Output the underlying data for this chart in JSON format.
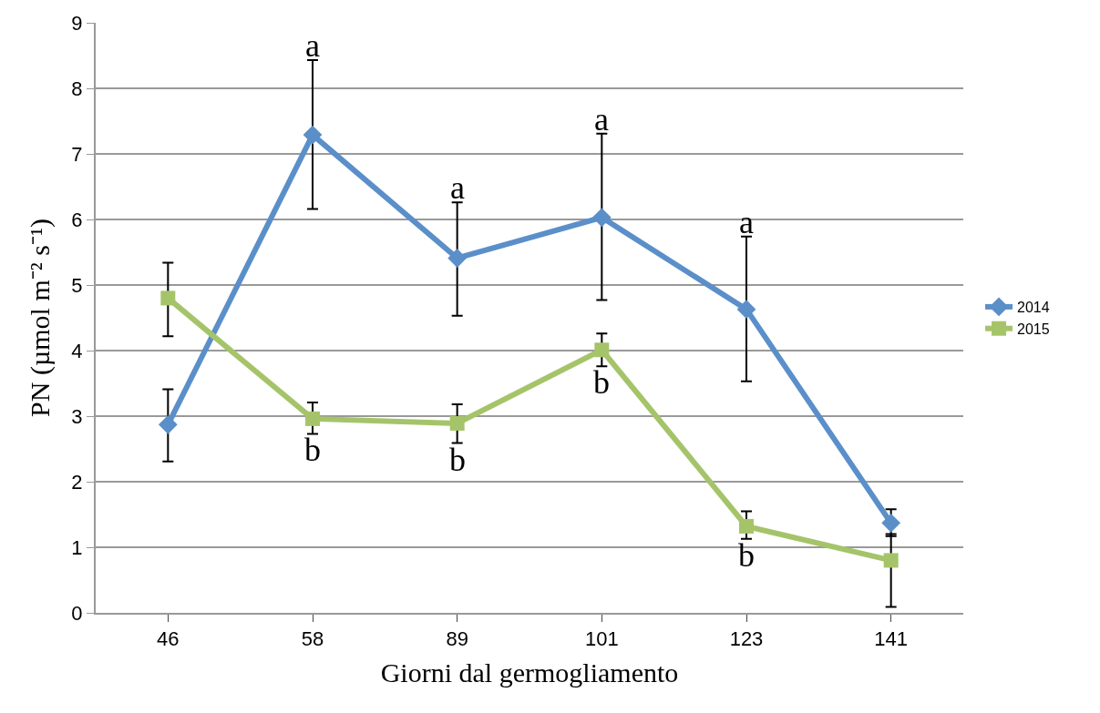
{
  "chart_data": {
    "type": "line",
    "xlabel": "Giorni dal germogliamento",
    "ylabel": "PN (µmol m⁻² s⁻¹)",
    "categories": [
      "46",
      "58",
      "89",
      "101",
      "123",
      "141"
    ],
    "series": [
      {
        "name": "2014",
        "color": "#5b8fc9",
        "marker": "diamond",
        "values": [
          2.87,
          7.29,
          5.41,
          6.03,
          4.63,
          1.37
        ],
        "errors": [
          [
            2.31,
            3.41
          ],
          [
            6.16,
            8.43
          ],
          [
            4.53,
            6.26
          ],
          [
            4.77,
            7.31
          ],
          [
            3.53,
            5.74
          ],
          [
            1.17,
            1.58
          ]
        ]
      },
      {
        "name": "2015",
        "color": "#a5c46a",
        "marker": "square",
        "values": [
          4.8,
          2.96,
          2.89,
          4.01,
          1.32,
          0.8
        ],
        "errors": [
          [
            4.22,
            5.34
          ],
          [
            2.73,
            3.21
          ],
          [
            2.59,
            3.18
          ],
          [
            3.76,
            4.26
          ],
          [
            1.13,
            1.55
          ],
          [
            0.09,
            1.2
          ]
        ]
      }
    ],
    "ylim": [
      0,
      9
    ],
    "yticks": [
      0,
      1,
      2,
      3,
      4,
      5,
      6,
      7,
      8,
      9
    ],
    "grid": "y",
    "legend": "right",
    "line_style": "solid",
    "annotations": [
      {
        "text": "a",
        "x": "58",
        "y": 8.43
      },
      {
        "text": "a",
        "x": "89",
        "y": 6.26
      },
      {
        "text": "a",
        "x": "101",
        "y": 7.31
      },
      {
        "text": "a",
        "x": "123",
        "y": 5.74
      },
      {
        "text": "b",
        "x": "58",
        "y": 2.73
      },
      {
        "text": "b",
        "x": "89",
        "y": 2.59
      },
      {
        "text": "b",
        "x": "101",
        "y": 3.76
      },
      {
        "text": "b",
        "x": "123",
        "y": 1.13
      }
    ]
  }
}
